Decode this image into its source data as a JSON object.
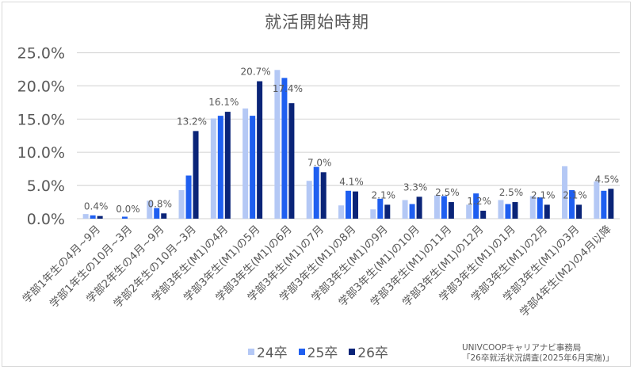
{
  "chart_data": {
    "type": "bar",
    "title": "就活開始時期",
    "xlabel": "",
    "ylabel": "",
    "ylim": [
      0,
      25
    ],
    "yticks": [
      "0.0%",
      "5.0%",
      "10.0%",
      "15.0%",
      "20.0%",
      "25.0%"
    ],
    "grid": true,
    "legend_position": "bottom",
    "categories": [
      "学部1年生の4月~9月",
      "学部1年生の10月~3月",
      "学部2年生の4月~9月",
      "学部2年生の10月~3月",
      "学部3年生(M1)の4月",
      "学部3年生(M1)の5月",
      "学部3年生(M1)の6月",
      "学部3年生(M1)の7月",
      "学部3年生(M1)の8月",
      "学部3年生(M1)の9月",
      "学部3年生(M1)の10月",
      "学部3年生(M1)の11月",
      "学部3年生(M1)の12月",
      "学部3年生(M1)の1月",
      "学部3年生(M1)の2月",
      "学部3年生(M1)の3月",
      "学部4年生(M2)の4月以降"
    ],
    "series": [
      {
        "name": "24卒",
        "color": "#b4c8f5",
        "values": [
          0.7,
          0.0,
          2.7,
          4.3,
          15.1,
          16.6,
          22.4,
          5.7,
          2.0,
          1.4,
          2.8,
          3.5,
          2.1,
          2.8,
          3.4,
          7.9,
          5.6
        ]
      },
      {
        "name": "25卒",
        "color": "#1f5ff0",
        "values": [
          0.5,
          0.3,
          1.6,
          6.5,
          15.5,
          15.5,
          21.2,
          7.8,
          4.2,
          3.0,
          2.2,
          3.4,
          3.8,
          2.2,
          3.2,
          4.3,
          4.2
        ]
      },
      {
        "name": "26卒",
        "color": "#0a2478",
        "values": [
          0.4,
          0.0,
          0.8,
          13.2,
          16.1,
          20.7,
          17.4,
          7.0,
          4.1,
          2.1,
          3.3,
          2.5,
          1.2,
          2.5,
          2.1,
          2.1,
          4.5
        ]
      }
    ],
    "data_labels": {
      "series": "26卒",
      "labels": [
        "0.4%",
        "0.0%",
        "0.8%",
        "13.2%",
        "16.1%",
        "20.7%",
        "17.4%",
        "7.0%",
        "4.1%",
        "2.1%",
        "3.3%",
        "2.5%",
        "1.2%",
        "2.5%",
        "2.1%",
        "2.1%",
        "4.5%"
      ]
    }
  },
  "legend": {
    "items": [
      {
        "label": "24卒",
        "color": "#b4c8f5"
      },
      {
        "label": "25卒",
        "color": "#1f5ff0"
      },
      {
        "label": "26卒",
        "color": "#0a2478"
      }
    ]
  },
  "source": {
    "line1": "UNIVCOOPキャリアナビ事務局",
    "line2": "「26卒就活状況調査(2025年6月実施)」"
  }
}
